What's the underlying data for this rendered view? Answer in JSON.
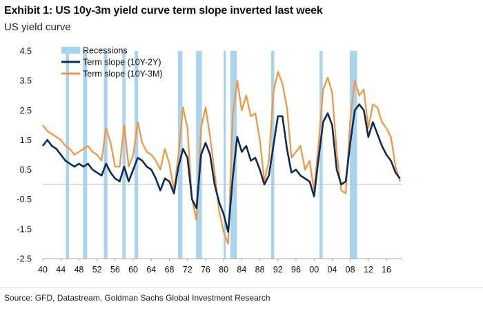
{
  "header": {
    "title": "Exhibit 1: US 10y-3m yield curve term slope inverted last week",
    "subtitle": "US yield curve"
  },
  "footer": {
    "source": "Source: GFD, Datastream, Goldman Sachs Global Investment Research"
  },
  "colors": {
    "recession": "#a9d4ef",
    "navy": "#0d2b57",
    "orange": "#f4943c",
    "axis": "#aaaaaa",
    "zero": "#bfbfbf"
  },
  "chart_data": {
    "type": "line",
    "title": "Exhibit 1: US 10y-3m yield curve term slope inverted last week",
    "subtitle": "US yield curve",
    "xlabel": "",
    "ylabel": "",
    "xlim": [
      1940,
      2019.5
    ],
    "ylim": [
      -2.5,
      4.5
    ],
    "yticks": [
      4.5,
      3.5,
      2.5,
      1.5,
      0.5,
      -0.5,
      -1.5,
      -2.5
    ],
    "ytick_labels": [
      "4.5",
      "3.5",
      "2.5",
      "1.5",
      "0.5",
      "-0.5",
      "-1.5",
      "-2.5"
    ],
    "xticks": [
      1940,
      1944,
      1948,
      1952,
      1956,
      1960,
      1964,
      1968,
      1972,
      1976,
      1980,
      1984,
      1988,
      1992,
      1996,
      2000,
      2004,
      2008,
      2012,
      2016
    ],
    "xtick_labels": [
      "40",
      "44",
      "48",
      "52",
      "56",
      "60",
      "64",
      "68",
      "72",
      "76",
      "80",
      "84",
      "88",
      "92",
      "96",
      "00",
      "04",
      "08",
      "12",
      "16"
    ],
    "legend_position": "top-left",
    "legend": [
      "Recessions",
      "Term slope (10Y-2Y)",
      "Term slope (10Y-3M)"
    ],
    "recessions": [
      [
        1945.1,
        1945.8
      ],
      [
        1948.9,
        1949.8
      ],
      [
        1953.5,
        1954.3
      ],
      [
        1957.6,
        1958.3
      ],
      [
        1960.3,
        1961.1
      ],
      [
        1969.9,
        1970.9
      ],
      [
        1973.9,
        1975.2
      ],
      [
        1980.0,
        1980.5
      ],
      [
        1981.5,
        1982.9
      ],
      [
        1990.5,
        1991.2
      ],
      [
        2001.2,
        2001.9
      ],
      [
        2007.9,
        2009.5
      ]
    ],
    "series": [
      {
        "name": "Term slope (10Y-2Y)",
        "color": "#0d2b57",
        "x": [
          1940,
          1941,
          1942,
          1943,
          1944,
          1945,
          1946,
          1947,
          1948,
          1949,
          1950,
          1951,
          1952,
          1953,
          1954,
          1955,
          1956,
          1957,
          1958,
          1959,
          1960,
          1961,
          1962,
          1963,
          1964,
          1965,
          1966,
          1967,
          1968,
          1969,
          1970,
          1971,
          1972,
          1973,
          1974,
          1975,
          1976,
          1977,
          1978,
          1979,
          1980,
          1981,
          1982,
          1983,
          1984,
          1985,
          1986,
          1987,
          1988,
          1989,
          1990,
          1991,
          1992,
          1993,
          1994,
          1995,
          1996,
          1997,
          1998,
          1999,
          2000,
          2001,
          2002,
          2003,
          2004,
          2005,
          2006,
          2007,
          2008,
          2009,
          2010,
          2011,
          2012,
          2013,
          2014,
          2015,
          2016,
          2017,
          2018,
          2019
        ],
        "values": [
          1.3,
          1.5,
          1.3,
          1.2,
          1.0,
          0.8,
          0.7,
          0.6,
          0.7,
          0.6,
          0.7,
          0.5,
          0.4,
          0.3,
          0.7,
          0.4,
          0.2,
          0.1,
          0.6,
          0.1,
          0.5,
          0.9,
          0.8,
          0.6,
          0.5,
          0.2,
          -0.2,
          0.2,
          0.1,
          -0.3,
          0.6,
          1.2,
          0.9,
          -0.5,
          -0.8,
          1.0,
          1.4,
          1.0,
          0.0,
          -0.6,
          -1.0,
          -1.6,
          0.2,
          1.6,
          1.1,
          1.3,
          0.8,
          0.9,
          0.5,
          0.0,
          0.3,
          1.3,
          2.3,
          2.3,
          1.2,
          0.4,
          0.5,
          0.3,
          0.2,
          0.1,
          -0.4,
          0.9,
          2.1,
          2.4,
          2.0,
          0.5,
          0.0,
          0.1,
          1.4,
          2.5,
          2.7,
          2.5,
          1.6,
          2.1,
          1.7,
          1.3,
          1.0,
          0.8,
          0.4,
          0.2
        ]
      },
      {
        "name": "Term slope (10Y-3M)",
        "color": "#f4943c",
        "x": [
          1940,
          1941,
          1942,
          1943,
          1944,
          1945,
          1946,
          1947,
          1948,
          1949,
          1950,
          1951,
          1952,
          1953,
          1954,
          1955,
          1956,
          1957,
          1958,
          1959,
          1960,
          1961,
          1962,
          1963,
          1964,
          1965,
          1966,
          1967,
          1968,
          1969,
          1970,
          1971,
          1972,
          1973,
          1974,
          1975,
          1976,
          1977,
          1978,
          1979,
          1980,
          1981,
          1982,
          1983,
          1984,
          1985,
          1986,
          1987,
          1988,
          1989,
          1990,
          1991,
          1992,
          1993,
          1994,
          1995,
          1996,
          1997,
          1998,
          1999,
          2000,
          2001,
          2002,
          2003,
          2004,
          2005,
          2006,
          2007,
          2008,
          2009,
          2010,
          2011,
          2012,
          2013,
          2014,
          2015,
          2016,
          2017,
          2018,
          2019
        ],
        "values": [
          2.0,
          1.8,
          1.7,
          1.6,
          1.5,
          1.3,
          1.2,
          1.0,
          1.1,
          1.2,
          1.3,
          1.1,
          1.0,
          0.8,
          1.9,
          1.4,
          0.6,
          0.6,
          2.0,
          0.6,
          1.0,
          2.1,
          1.4,
          1.1,
          1.0,
          0.8,
          0.5,
          1.2,
          0.7,
          -0.2,
          1.0,
          2.6,
          1.9,
          -0.5,
          -1.2,
          1.9,
          2.6,
          1.6,
          0.4,
          -0.9,
          -1.6,
          -2.0,
          2.3,
          3.5,
          2.5,
          3.0,
          2.3,
          2.4,
          1.5,
          0.1,
          0.8,
          3.1,
          3.8,
          3.4,
          2.6,
          0.9,
          1.1,
          1.3,
          0.5,
          0.8,
          -0.2,
          1.4,
          3.2,
          3.6,
          3.1,
          1.1,
          -0.2,
          -0.3,
          2.2,
          3.5,
          3.0,
          3.2,
          1.9,
          2.7,
          2.6,
          2.1,
          1.9,
          1.6,
          0.6,
          0.1
        ]
      }
    ]
  }
}
